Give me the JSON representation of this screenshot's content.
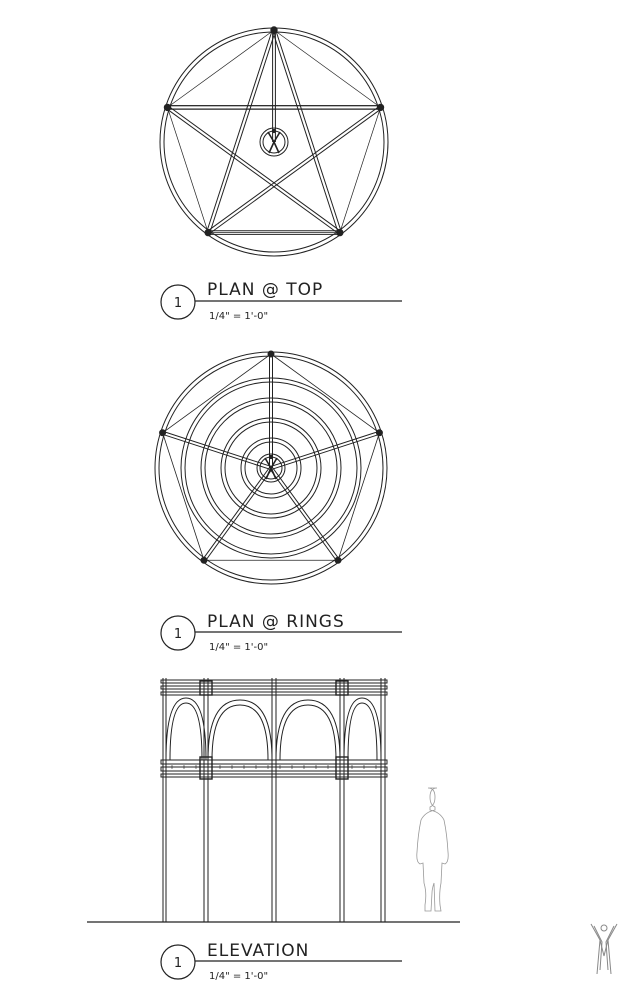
{
  "views": [
    {
      "bubble": "1",
      "title": "PLAN @ TOP",
      "scale": "1/4\" = 1'-0\""
    },
    {
      "bubble": "1",
      "title": "PLAN @ RINGS",
      "scale": "1/4\" = 1'-0\""
    },
    {
      "bubble": "1",
      "title": "ELEVATION",
      "scale": "1/4\" = 1'-0\""
    }
  ],
  "logo_icon": "human-figure-logo"
}
